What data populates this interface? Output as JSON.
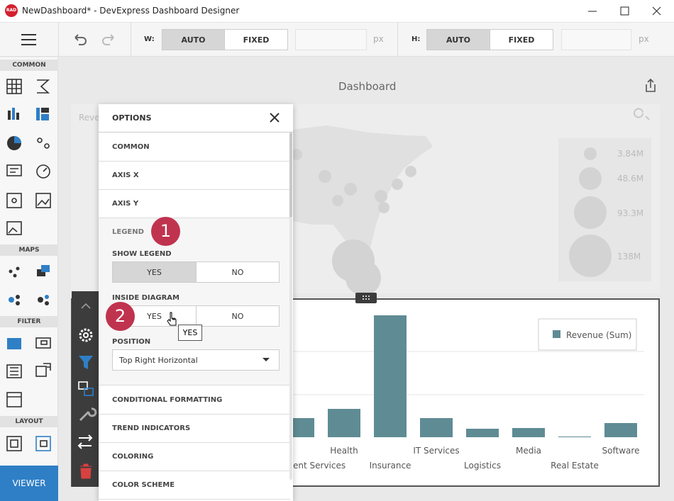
{
  "window": {
    "logo": "RAD",
    "title": "NewDashboard* - DevExpress Dashboard Designer"
  },
  "toolbar": {
    "width_label": "W:",
    "width_modes": [
      "AUTO",
      "FIXED"
    ],
    "width_unit": "px",
    "height_label": "H:",
    "height_modes": [
      "AUTO",
      "FIXED"
    ],
    "height_unit": "px"
  },
  "sidebar": {
    "sections": [
      "COMMON",
      "MAPS",
      "FILTER",
      "LAYOUT"
    ],
    "viewer_button": "VIEWER"
  },
  "dashboard": {
    "title": "Dashboard"
  },
  "map_item": {
    "caption": "Reve",
    "legend_labels": [
      "3.84M",
      "48.6M",
      "93.3M",
      "138M"
    ]
  },
  "chart_item": {
    "legend": "Revenue (Sum)",
    "categories": [
      "ent Services",
      "Health",
      "Insurance",
      "IT Services",
      "Logistics",
      "Media",
      "Real Estate",
      "Software"
    ],
    "values": [
      27,
      40,
      172,
      27,
      12,
      13,
      1,
      20
    ],
    "color": "#5f8b94"
  },
  "options": {
    "title": "OPTIONS",
    "sections_top": [
      "COMMON",
      "AXIS X",
      "AXIS Y"
    ],
    "legend": {
      "title": "LEGEND",
      "show_legend": {
        "label": "SHOW LEGEND",
        "choices": [
          "YES",
          "NO"
        ]
      },
      "inside_diagram": {
        "label": "INSIDE DIAGRAM",
        "choices": [
          "YES",
          "NO"
        ]
      },
      "position": {
        "label": "POSITION",
        "value": "Top Right Horizontal"
      }
    },
    "sections_bottom": [
      "CONDITIONAL FORMATTING",
      "TREND INDICATORS",
      "COLORING",
      "COLOR SCHEME"
    ]
  },
  "tooltip": "YES",
  "callouts": [
    "1",
    "2"
  ]
}
